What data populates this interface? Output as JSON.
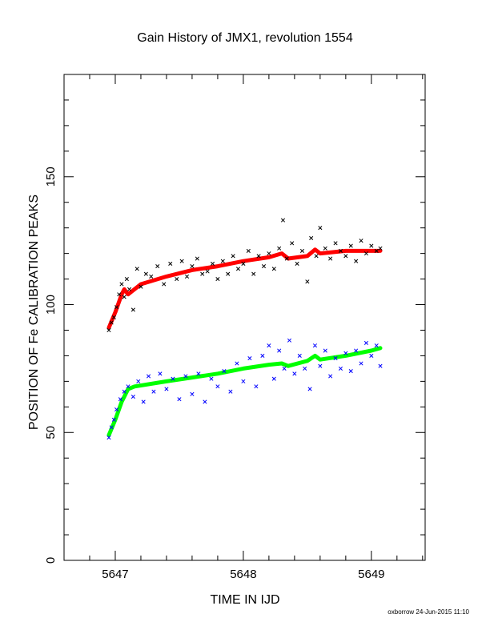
{
  "chart_data": {
    "type": "scatter",
    "title": "Gain History of JMX1, revolution 1554",
    "xlabel": "TIME IN IJD",
    "ylabel": "POSITION OF Fe CALIBRATION PEAKS",
    "xlim": [
      5646.6,
      5649.42
    ],
    "ylim": [
      0,
      190
    ],
    "x_ticks": [
      5647,
      5648,
      5649
    ],
    "y_ticks": [
      0,
      50,
      100,
      150
    ],
    "grid": false,
    "footer": "oxborrow 24-Jun-2015 11:10",
    "series": [
      {
        "marker": "x",
        "color": "#000000",
        "line_color": "#ff0000",
        "points": [
          [
            5646.95,
            90
          ],
          [
            5646.97,
            93
          ],
          [
            5646.99,
            95
          ],
          [
            5647.01,
            99
          ],
          [
            5647.03,
            104
          ],
          [
            5647.05,
            108
          ],
          [
            5647.07,
            103
          ],
          [
            5647.09,
            110
          ],
          [
            5647.11,
            106
          ],
          [
            5647.14,
            98
          ],
          [
            5647.17,
            114
          ],
          [
            5647.2,
            107
          ],
          [
            5647.24,
            112
          ],
          [
            5647.28,
            111
          ],
          [
            5647.33,
            115
          ],
          [
            5647.38,
            108
          ],
          [
            5647.43,
            116
          ],
          [
            5647.48,
            110
          ],
          [
            5647.52,
            117
          ],
          [
            5647.56,
            111
          ],
          [
            5647.6,
            115
          ],
          [
            5647.64,
            118
          ],
          [
            5647.68,
            112
          ],
          [
            5647.72,
            113
          ],
          [
            5647.76,
            116
          ],
          [
            5647.8,
            110
          ],
          [
            5647.84,
            117
          ],
          [
            5647.88,
            112
          ],
          [
            5647.92,
            119
          ],
          [
            5647.96,
            114
          ],
          [
            5648.0,
            116
          ],
          [
            5648.04,
            121
          ],
          [
            5648.08,
            112
          ],
          [
            5648.12,
            119
          ],
          [
            5648.16,
            115
          ],
          [
            5648.2,
            120
          ],
          [
            5648.24,
            114
          ],
          [
            5648.28,
            122
          ],
          [
            5648.31,
            133
          ],
          [
            5648.34,
            118
          ],
          [
            5648.38,
            124
          ],
          [
            5648.42,
            116
          ],
          [
            5648.46,
            121
          ],
          [
            5648.5,
            109
          ],
          [
            5648.53,
            126
          ],
          [
            5648.57,
            119
          ],
          [
            5648.6,
            130
          ],
          [
            5648.64,
            122
          ],
          [
            5648.68,
            118
          ],
          [
            5648.72,
            124
          ],
          [
            5648.76,
            121
          ],
          [
            5648.8,
            119
          ],
          [
            5648.84,
            123
          ],
          [
            5648.88,
            117
          ],
          [
            5648.92,
            125
          ],
          [
            5648.96,
            120
          ],
          [
            5649.0,
            123
          ],
          [
            5649.04,
            121
          ],
          [
            5649.07,
            122
          ]
        ],
        "fit": [
          [
            5646.95,
            91
          ],
          [
            5647.0,
            97
          ],
          [
            5647.05,
            104
          ],
          [
            5647.07,
            106
          ],
          [
            5647.1,
            104
          ],
          [
            5647.2,
            108
          ],
          [
            5647.4,
            111
          ],
          [
            5647.6,
            113.5
          ],
          [
            5647.8,
            115
          ],
          [
            5648.0,
            117
          ],
          [
            5648.2,
            118.5
          ],
          [
            5648.3,
            120
          ],
          [
            5648.35,
            118
          ],
          [
            5648.5,
            119
          ],
          [
            5648.56,
            121.5
          ],
          [
            5648.6,
            120
          ],
          [
            5648.8,
            121
          ],
          [
            5649.0,
            121
          ],
          [
            5649.07,
            121
          ]
        ]
      },
      {
        "marker": "x",
        "color": "#0000ff",
        "line_color": "#00ff00",
        "points": [
          [
            5646.95,
            48
          ],
          [
            5646.97,
            52
          ],
          [
            5646.99,
            55
          ],
          [
            5647.01,
            59
          ],
          [
            5647.04,
            63
          ],
          [
            5647.07,
            66
          ],
          [
            5647.1,
            68
          ],
          [
            5647.14,
            64
          ],
          [
            5647.18,
            70
          ],
          [
            5647.22,
            62
          ],
          [
            5647.26,
            72
          ],
          [
            5647.3,
            66
          ],
          [
            5647.35,
            73
          ],
          [
            5647.4,
            67
          ],
          [
            5647.45,
            71
          ],
          [
            5647.5,
            63
          ],
          [
            5647.55,
            72
          ],
          [
            5647.6,
            65
          ],
          [
            5647.65,
            73
          ],
          [
            5647.7,
            62
          ],
          [
            5647.75,
            71
          ],
          [
            5647.8,
            68
          ],
          [
            5647.85,
            74
          ],
          [
            5647.9,
            66
          ],
          [
            5647.95,
            77
          ],
          [
            5648.0,
            70
          ],
          [
            5648.05,
            79
          ],
          [
            5648.1,
            68
          ],
          [
            5648.15,
            80
          ],
          [
            5648.2,
            84
          ],
          [
            5648.24,
            71
          ],
          [
            5648.28,
            82
          ],
          [
            5648.32,
            75
          ],
          [
            5648.36,
            86
          ],
          [
            5648.4,
            73
          ],
          [
            5648.44,
            80
          ],
          [
            5648.48,
            75
          ],
          [
            5648.52,
            67
          ],
          [
            5648.56,
            84
          ],
          [
            5648.6,
            76
          ],
          [
            5648.64,
            82
          ],
          [
            5648.68,
            72
          ],
          [
            5648.72,
            79
          ],
          [
            5648.76,
            75
          ],
          [
            5648.8,
            81
          ],
          [
            5648.84,
            74
          ],
          [
            5648.88,
            82
          ],
          [
            5648.92,
            77
          ],
          [
            5648.96,
            85
          ],
          [
            5649.0,
            80
          ],
          [
            5649.04,
            84
          ],
          [
            5649.07,
            76
          ]
        ],
        "fit": [
          [
            5646.95,
            49
          ],
          [
            5647.0,
            55
          ],
          [
            5647.05,
            62
          ],
          [
            5647.1,
            67
          ],
          [
            5647.15,
            68
          ],
          [
            5647.4,
            70
          ],
          [
            5647.6,
            71.5
          ],
          [
            5647.8,
            73
          ],
          [
            5648.0,
            75
          ],
          [
            5648.2,
            76.5
          ],
          [
            5648.3,
            77
          ],
          [
            5648.35,
            76
          ],
          [
            5648.5,
            78
          ],
          [
            5648.56,
            80
          ],
          [
            5648.6,
            78.5
          ],
          [
            5648.8,
            80
          ],
          [
            5649.0,
            82
          ],
          [
            5649.07,
            83
          ]
        ]
      }
    ]
  }
}
